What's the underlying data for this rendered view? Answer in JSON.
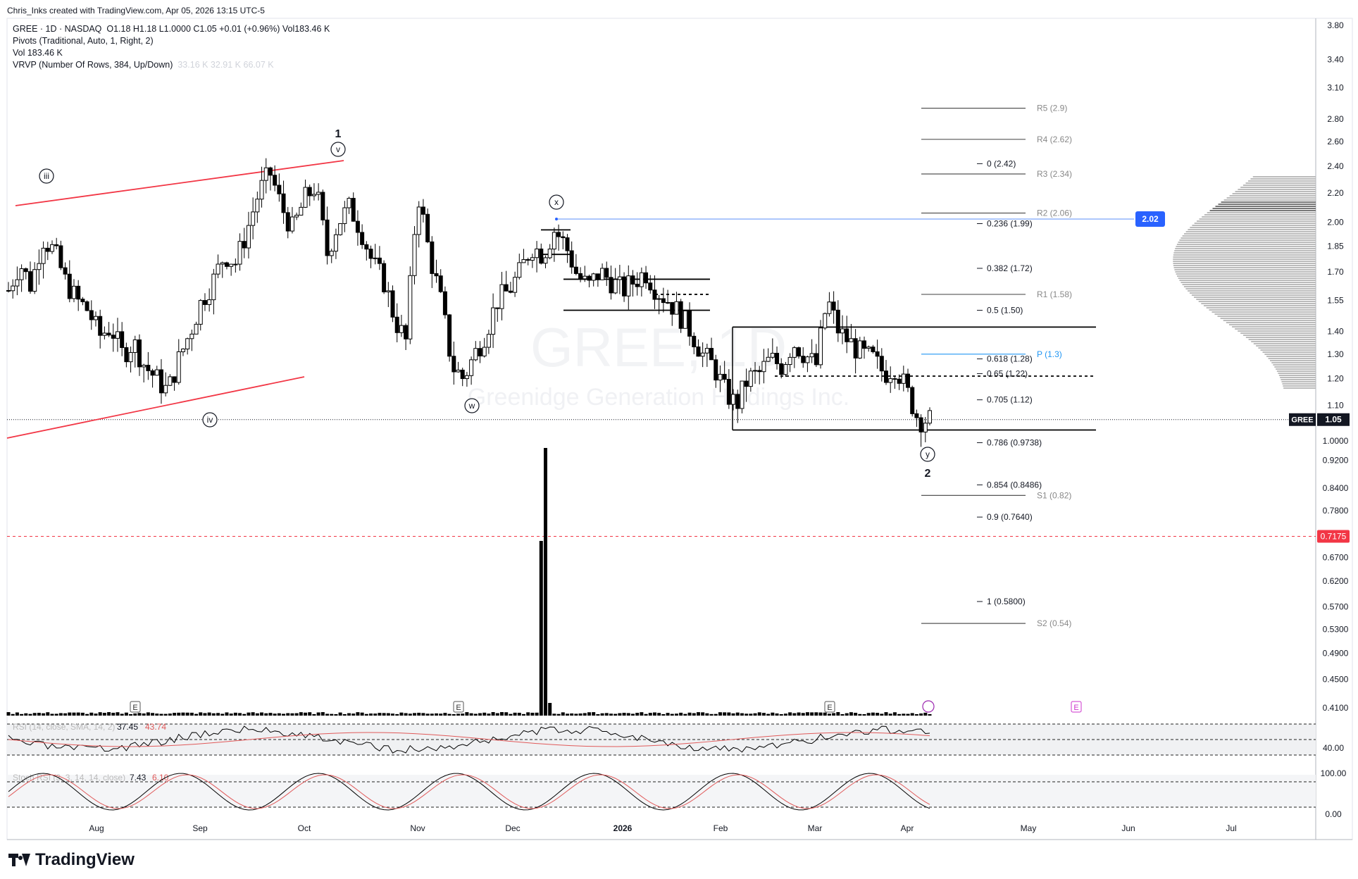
{
  "credit": "Chris_Inks created with TradingView.com, Apr 05, 2026 13:15 UTC-5",
  "legend": {
    "symbol": "GREE · 1D · NASDAQ",
    "ohlc": "O1.18  H1.18  L1.0000  C1.05  +0.01 (+0.96%)  Vol183.46 K",
    "pivots": "Pivots (Traditional, Auto, 1, Right, 2)",
    "vol": "Vol  183.46 K",
    "vrvp": "VRVP (Number Of Rows, 384, Up/Down)",
    "vrvp_values": "33.16 K  32.91 K  66.07 K"
  },
  "watermark": {
    "ticker": "GREE, 1D",
    "company": "Greenidge Generation Holdings Inc."
  },
  "price_axis": {
    "ticks": [
      "3.80",
      "3.40",
      "3.10",
      "2.80",
      "2.60",
      "2.40",
      "2.20",
      "2.00",
      "1.85",
      "1.70",
      "1.55",
      "1.40",
      "1.30",
      "1.20",
      "1.10",
      "1.00",
      "1.0000",
      "0.9200",
      "0.8400",
      "0.7800",
      "0.6700",
      "0.6200",
      "0.5700",
      "0.5300",
      "0.4900",
      "0.4500",
      "0.4100"
    ],
    "current_label": "GREE",
    "current_value": "1.05",
    "level_label": "2.02",
    "dashed_level": "0.7175"
  },
  "time_axis": [
    "Aug",
    "Sep",
    "Oct",
    "Nov",
    "Dec",
    "2026",
    "Feb",
    "Mar",
    "Apr",
    "May",
    "Jun",
    "Jul"
  ],
  "fib_levels": [
    "0 (2.42)",
    "0.236 (1.99)",
    "0.382 (1.72)",
    "0.5 (1.50)",
    "0.618 (1.28)",
    "0.65 (1.22)",
    "0.705 (1.12)",
    "0.786 (0.9738)",
    "0.854 (0.8486)",
    "0.9 (0.7640)",
    "1 (0.5800)"
  ],
  "pivot_levels": [
    "R5 (2.9)",
    "R4 (2.62)",
    "R3 (2.34)",
    "R2 (2.06)",
    "R1 (1.58)",
    "P (1.3)",
    "S1 (0.82)",
    "S2 (0.54)"
  ],
  "wave_labels": [
    "iii",
    "v",
    "1",
    "iv",
    "w",
    "x",
    "y",
    "2"
  ],
  "events": [
    "E",
    "E",
    "E",
    "E"
  ],
  "rsi": {
    "label": "RSI (14, close, SMA, 14, 2)",
    "value1": "37.45",
    "value2": "43.74",
    "axis": "40.00"
  },
  "stoch": {
    "label": "Stoch RSI (3, 3, 14, 14, close)",
    "value1": "7.43",
    "value2": "6.10",
    "axis_top": "100.00",
    "axis_bottom": "0.00"
  },
  "brand": "TradingView",
  "colors": {
    "up": "#ffffff",
    "down": "#000000",
    "channel": "#f23645",
    "blue": "#2962ff",
    "pivot_p": "#2196f3",
    "rsi": "#e05a5a"
  },
  "chart_data": {
    "type": "candlestick",
    "symbol": "GREE",
    "timeframe": "1D",
    "range": "Jul 2025 – Apr 2026",
    "ylim": [
      0.41,
      3.8
    ],
    "scale": "log",
    "close_path": [
      1.6,
      1.75,
      1.62,
      1.9,
      1.82,
      1.65,
      1.55,
      1.5,
      1.38,
      1.42,
      1.3,
      1.35,
      1.25,
      1.2,
      1.15,
      1.28,
      1.4,
      1.55,
      1.65,
      1.8,
      1.75,
      1.95,
      2.2,
      2.35,
      2.1,
      1.95,
      2.15,
      2.25,
      1.8,
      2.0,
      2.1,
      1.95,
      1.75,
      1.65,
      1.45,
      1.35,
      2.2,
      1.8,
      1.55,
      1.25,
      1.2,
      1.3,
      1.4,
      1.55,
      1.6,
      1.7,
      1.85,
      1.8,
      1.95,
      1.85,
      1.68,
      1.62,
      1.7,
      1.65,
      1.6,
      1.65,
      1.7,
      1.6,
      1.55,
      1.48,
      1.4,
      1.3,
      1.25,
      1.15,
      1.1,
      1.2,
      1.22,
      1.28,
      1.25,
      1.35,
      1.3,
      1.25,
      1.55,
      1.4,
      1.35,
      1.3,
      1.28,
      1.22,
      1.25,
      1.15,
      1.05,
      1.05
    ]
  }
}
